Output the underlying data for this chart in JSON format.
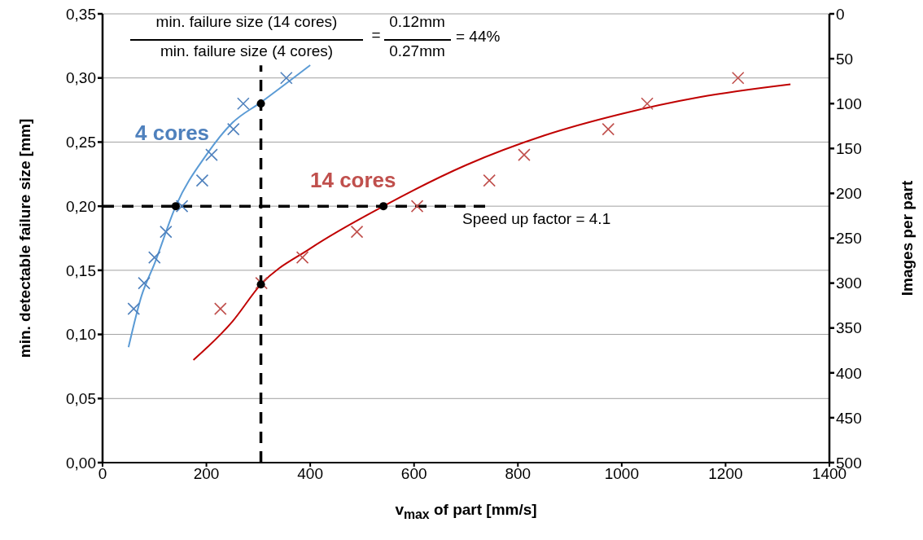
{
  "chart_data": {
    "type": "scatter",
    "xlabel": "v$_{max}$ of part [mm/s]",
    "ylabel": "min. detectable failure size [mm]",
    "y2label": "Images per part",
    "xlim": [
      0,
      1400
    ],
    "xticks": [
      0,
      200,
      400,
      600,
      800,
      1000,
      1200,
      1400
    ],
    "ylim": [
      0,
      0.35
    ],
    "yticks": [
      {
        "value": 0,
        "label": "0,00"
      },
      {
        "value": 0.05,
        "label": "0,05"
      },
      {
        "value": 0.1,
        "label": "0,10"
      },
      {
        "value": 0.15,
        "label": "0,15"
      },
      {
        "value": 0.2,
        "label": "0,20"
      },
      {
        "value": 0.25,
        "label": "0,25"
      },
      {
        "value": 0.3,
        "label": "0,30"
      },
      {
        "value": 0.35,
        "label": "0,35"
      }
    ],
    "y2lim": [
      500,
      0
    ],
    "y2ticks": [
      0,
      50,
      100,
      150,
      200,
      250,
      300,
      350,
      400,
      450,
      500
    ],
    "grid": "y",
    "legend": false,
    "series": [
      {
        "name": "4 cores",
        "marker": "cross",
        "color": "#4f81bd",
        "x": [
          60,
          80,
          100,
          122,
          153,
          192,
          210,
          252,
          271,
          354
        ],
        "values": [
          0.12,
          0.14,
          0.16,
          0.18,
          0.2,
          0.22,
          0.24,
          0.26,
          0.28,
          0.3
        ]
      },
      {
        "name": "14 cores",
        "marker": "cross",
        "color": "#c0504d",
        "x": [
          227,
          306,
          385,
          490,
          606,
          745,
          812,
          974,
          1049,
          1224
        ],
        "values": [
          0.12,
          0.14,
          0.16,
          0.18,
          0.2,
          0.22,
          0.24,
          0.26,
          0.28,
          0.3
        ]
      },
      {
        "type": "line",
        "marker": "none",
        "color": "#5b9bd5",
        "x": [
          50,
          75,
          100,
          141,
          200,
          250,
          305,
          400
        ],
        "values": [
          0.09,
          0.13,
          0.155,
          0.2,
          0.24,
          0.265,
          0.281,
          0.31
        ]
      },
      {
        "type": "line",
        "marker": "none",
        "color": "#c00000",
        "x": [
          175,
          250,
          305,
          400,
          541,
          700,
          850,
          1000,
          1150,
          1325
        ],
        "values": [
          0.08,
          0.11,
          0.139,
          0.167,
          0.2,
          0.232,
          0.255,
          0.272,
          0.285,
          0.295
        ]
      },
      {
        "marker": "circle",
        "color": "#000000",
        "x": [
          141,
          305,
          541,
          305
        ],
        "values": [
          0.2,
          0.28,
          0.2,
          0.139
        ]
      }
    ],
    "ref_lines": [
      {
        "axis": "y",
        "value": 0.2,
        "color": "#000000",
        "line_style": "dashed"
      },
      {
        "axis": "x",
        "value": 305,
        "color": "#000000",
        "line_style": "dashed"
      }
    ],
    "annotations": [
      "min. failure size (14 cores)",
      "min. failure size (4 cores)",
      "=",
      "0.12mm",
      "0.27mm",
      "= 44%",
      "Speed up factor = 4.1"
    ]
  }
}
